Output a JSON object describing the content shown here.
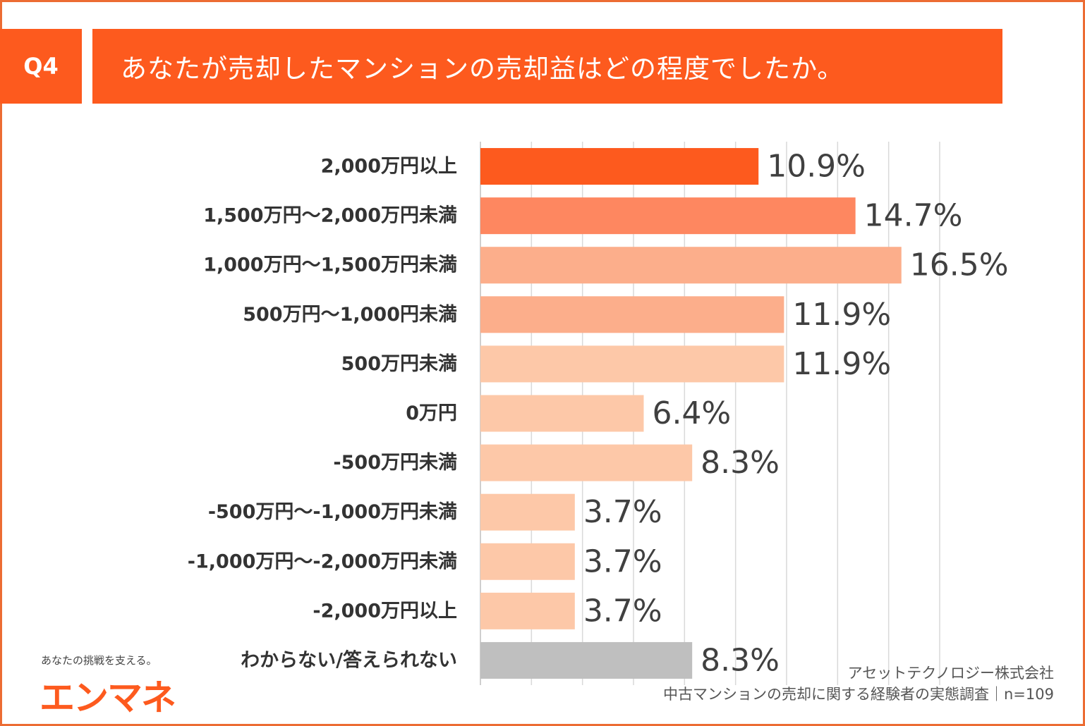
{
  "header": {
    "question_no": "Q4",
    "question": "あなたが売却したマンションの売却益はどの程度でしたか。"
  },
  "chart_data": {
    "type": "bar",
    "orientation": "horizontal",
    "title": "あなたが売却したマンションの売却益はどの程度でしたか。",
    "categories": [
      "2,000万円以上",
      "1,500万円〜2,000万円未満",
      "1,000万円〜1,500万円未満",
      "500万円〜1,000円未満",
      "500万円未満",
      "0万円",
      "-500万円未満",
      "-500万円〜-1,000万円未満",
      "-1,000万円〜-2,000万円未満",
      "-2,000万円以上",
      "わからない/答えられない"
    ],
    "values": [
      10.9,
      14.7,
      16.5,
      11.9,
      11.9,
      6.4,
      8.3,
      3.7,
      3.7,
      3.7,
      8.3
    ],
    "value_labels": [
      "10.9%",
      "14.7%",
      "16.5%",
      "11.9%",
      "11.9%",
      "6.4%",
      "8.3%",
      "3.7%",
      "3.7%",
      "3.7%",
      "8.3%"
    ],
    "bar_colors": [
      "#fd5a1e",
      "#fe8760",
      "#fcae8b",
      "#fcae8b",
      "#fdc8a8",
      "#fdc8a8",
      "#fdc8a8",
      "#fdc8a8",
      "#fdc8a8",
      "#fdc8a8",
      "#bfbfbf"
    ],
    "xlim": [
      0,
      18
    ],
    "grid": true,
    "xlabel": "",
    "ylabel": ""
  },
  "branding": {
    "tagline": "あなたの挑戦を支える。",
    "logo_text": "エンマネ"
  },
  "source": {
    "company": "アセットテクノロジー株式会社",
    "survey": "中古マンションの売却に関する経験者の実態調査｜n=109"
  },
  "colors": {
    "accent": "#fd5a1e",
    "border": "#ec6c33",
    "grid": "#d9d9d9"
  }
}
